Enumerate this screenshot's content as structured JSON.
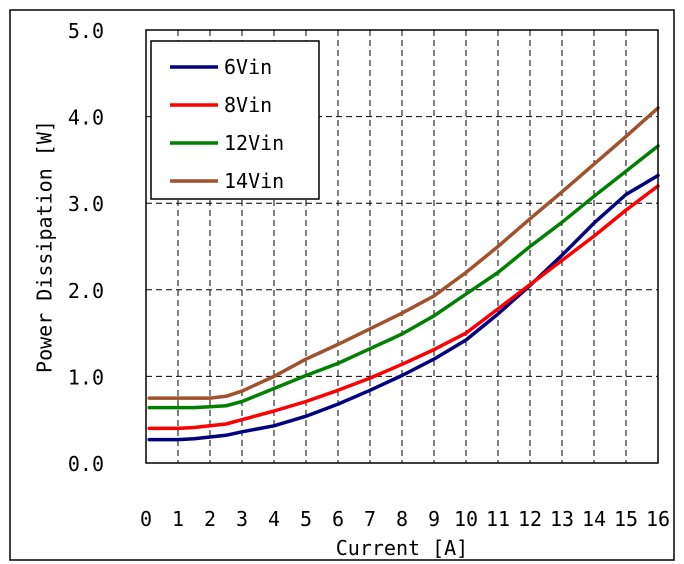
{
  "chart_data": {
    "type": "line",
    "xlabel": "Current [A]",
    "ylabel": "Power Dissipation [W]",
    "xlim": [
      0,
      16
    ],
    "ylim": [
      0,
      5
    ],
    "x_ticks": [
      "0",
      "1",
      "2",
      "3",
      "4",
      "5",
      "6",
      "7",
      "8",
      "9",
      "10",
      "11",
      "12",
      "13",
      "14",
      "15",
      "16"
    ],
    "y_ticks": [
      "0.0",
      "1.0",
      "2.0",
      "3.0",
      "4.0",
      "5.0"
    ],
    "grid": true,
    "legend_position": "top-left",
    "series": [
      {
        "name": "6Vin",
        "color": "#000080",
        "x": [
          0.1,
          0.5,
          1,
          1.5,
          2,
          2.5,
          3,
          4,
          5,
          6,
          7,
          8,
          9,
          10,
          11,
          12,
          13,
          14,
          15,
          16
        ],
        "values": [
          0.27,
          0.27,
          0.27,
          0.28,
          0.3,
          0.32,
          0.36,
          0.43,
          0.54,
          0.68,
          0.84,
          1.01,
          1.2,
          1.42,
          1.72,
          2.05,
          2.4,
          2.77,
          3.1,
          3.32
        ]
      },
      {
        "name": "8Vin",
        "color": "#ff0000",
        "x": [
          0.1,
          0.5,
          1,
          1.5,
          2,
          2.5,
          3,
          4,
          5,
          6,
          7,
          8,
          9,
          10,
          11,
          12,
          13,
          14,
          15,
          16
        ],
        "values": [
          0.4,
          0.4,
          0.4,
          0.41,
          0.43,
          0.45,
          0.5,
          0.6,
          0.71,
          0.84,
          0.98,
          1.14,
          1.31,
          1.5,
          1.78,
          2.06,
          2.34,
          2.62,
          2.92,
          3.2
        ]
      },
      {
        "name": "12Vin",
        "color": "#008000",
        "x": [
          0.1,
          0.5,
          1,
          1.5,
          2,
          2.5,
          3,
          4,
          5,
          6,
          7,
          8,
          9,
          10,
          11,
          12,
          13,
          14,
          15,
          16
        ],
        "values": [
          0.64,
          0.64,
          0.64,
          0.64,
          0.65,
          0.66,
          0.71,
          0.86,
          1.01,
          1.15,
          1.32,
          1.49,
          1.7,
          1.95,
          2.2,
          2.5,
          2.78,
          3.08,
          3.37,
          3.66
        ]
      },
      {
        "name": "14Vin",
        "color": "#a0522d",
        "x": [
          0.1,
          0.5,
          1,
          1.5,
          2,
          2.5,
          3,
          4,
          5,
          6,
          7,
          8,
          9,
          10,
          11,
          12,
          13,
          14,
          15,
          16
        ],
        "values": [
          0.75,
          0.75,
          0.75,
          0.75,
          0.75,
          0.77,
          0.83,
          1.0,
          1.2,
          1.37,
          1.55,
          1.73,
          1.93,
          2.2,
          2.5,
          2.82,
          3.13,
          3.45,
          3.77,
          4.1
        ]
      }
    ]
  }
}
